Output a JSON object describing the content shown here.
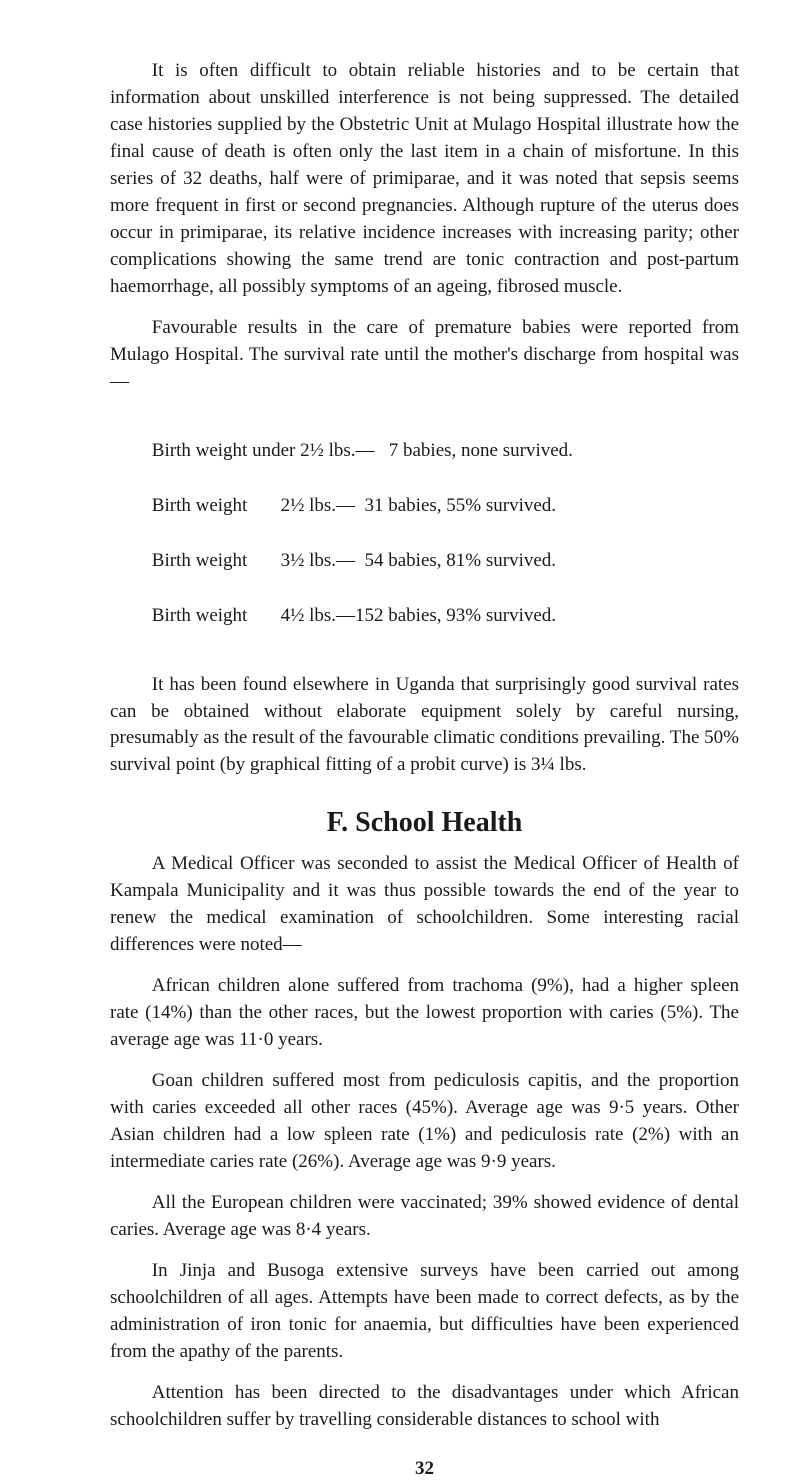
{
  "p1": "It is often difficult to obtain reliable histories and to be certain that information about unskilled interference is not being suppressed. The detailed case histories supplied by the Obstetric Unit at Mulago Hospital illustrate how the final cause of death is often only the last item in a chain of misfortune. In this series of 32 deaths, half were of primiparae, and it was noted that sepsis seems more frequent in first or second pregnancies. Although rupture of the uterus does occur in primiparae, its relative incidence increases with increasing parity; other complications show­ing the same trend are tonic contraction and post-partum haemorrhage, all possibly symptoms of an ageing, fibrosed muscle.",
  "p2": "Favourable results in the care of premature babies were reported from Mulago Hospital. The survival rate until the mother's discharge from hospital was—",
  "births": {
    "r1": "Birth weight under 2½ lbs.—   7 babies, none survived.",
    "r2": "Birth weight       2½ lbs.—  31 babies, 55% survived.",
    "r3": "Birth weight       3½ lbs.—  54 babies, 81% survived.",
    "r4": "Birth weight       4½ lbs.—152 babies, 93% survived."
  },
  "p3": "It has been found elsewhere in Uganda that surprisingly good survival rates can be obtained without elaborate equipment solely by careful nursing, presumably as the result of the favourable climatic conditions prevailing. The 50% survival point (by graphical fitting of a probit curve) is 3¼ lbs.",
  "heading": "F.   School Health",
  "p4": "A Medical Officer was seconded to assist the Medical Officer of Health of Kampala Municipality and it was thus possible towards the end of the year to renew the medical examination of schoolchildren. Some interesting racial differences were noted—",
  "p5": "African children alone suffered from trachoma (9%), had a higher spleen rate (14%) than the other races, but the lowest proportion with caries (5%). The average age was 11·0 years.",
  "p6": "Goan children suffered most from pediculosis capitis, and the pro­portion with caries exceeded all other races (45%). Average age was 9·5 years. Other Asian children had a low spleen rate (1%) and pediculosis rate (2%) with an intermediate caries rate (26%). Average age was 9·9 years.",
  "p7": "All the European children were vaccinated; 39% showed evidence of dental caries. Average age was 8·4 years.",
  "p8": "In Jinja and Busoga extensive surveys have been carried out among schoolchildren of all ages. Attempts have been made to correct defects, as by the administration of iron tonic for anaemia, but difficulties have been experienced from the apathy of the parents.",
  "p9": "Attention has been directed to the disadvantages under which African schoolchildren suffer by travelling considerable distances to school with",
  "pagenum": "32"
}
